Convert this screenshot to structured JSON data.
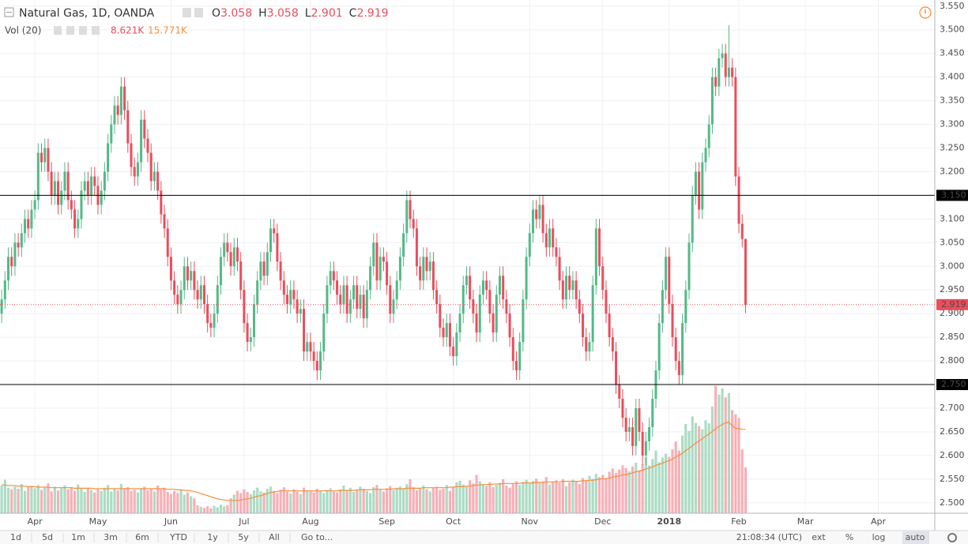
{
  "chart_data": {
    "type": "candlestick",
    "title": "Natural Gas, 1D, OANDA",
    "ohlc_letters": [
      "O",
      "H",
      "L",
      "C"
    ],
    "volume_title": "Vol (20)",
    "volume_label": "8.621K",
    "volume_ma_label": "15.771K",
    "up_color": "#53b987",
    "down_color": "#eb4d5c",
    "volume_up_color": "#acdcc4",
    "volume_down_color": "#f6b0b7",
    "volume_ma_color": "#f5903d",
    "level_color": "#000000",
    "grid": true,
    "ylim": [
      2.478,
      3.563
    ],
    "yticks": [
      {
        "value": 2.5,
        "label": "2.500"
      },
      {
        "value": 2.55,
        "label": "2.550"
      },
      {
        "value": 2.6,
        "label": "2.600"
      },
      {
        "value": 2.65,
        "label": "2.650"
      },
      {
        "value": 2.7,
        "label": "2.700"
      },
      {
        "value": 2.75,
        "label": "2.750"
      },
      {
        "value": 2.8,
        "label": "2.800"
      },
      {
        "value": 2.85,
        "label": "2.850"
      },
      {
        "value": 2.9,
        "label": "2.900"
      },
      {
        "value": 2.95,
        "label": "2.950"
      },
      {
        "value": 3.0,
        "label": "3.000"
      },
      {
        "value": 3.05,
        "label": "3.050"
      },
      {
        "value": 3.1,
        "label": "3.100"
      },
      {
        "value": 3.15,
        "label": "3.150"
      },
      {
        "value": 3.2,
        "label": "3.200"
      },
      {
        "value": 3.25,
        "label": "3.250"
      },
      {
        "value": 3.3,
        "label": "3.300"
      },
      {
        "value": 3.35,
        "label": "3.350"
      },
      {
        "value": 3.4,
        "label": "3.400"
      },
      {
        "value": 3.45,
        "label": "3.450"
      },
      {
        "value": 3.5,
        "label": "3.500"
      },
      {
        "value": 3.55,
        "label": "3.550"
      }
    ],
    "xlim": [
      -0.5,
      281
    ],
    "xticks": [
      {
        "value": 10,
        "label": "Apr"
      },
      {
        "value": 29,
        "label": "May"
      },
      {
        "value": 51,
        "label": "Jun"
      },
      {
        "value": 73,
        "label": "Jul"
      },
      {
        "value": 93,
        "label": "Aug"
      },
      {
        "value": 116,
        "label": "Sep"
      },
      {
        "value": 136,
        "label": "Oct"
      },
      {
        "value": 159,
        "label": "Nov"
      },
      {
        "value": 181,
        "label": "Dec"
      },
      {
        "value": 201,
        "label": "2018"
      },
      {
        "value": 222,
        "label": "Feb"
      },
      {
        "value": 242,
        "label": "Mar"
      },
      {
        "value": 264,
        "label": "Apr"
      }
    ],
    "levels": [
      {
        "value": 3.15,
        "label": "3.150"
      },
      {
        "value": 2.75,
        "label": "2.750"
      }
    ],
    "open": [
      2.9,
      2.93,
      2.97,
      3.02,
      3.0,
      3.05,
      3.04,
      3.07,
      3.1,
      3.08,
      3.12,
      3.14,
      3.24,
      3.22,
      3.25,
      3.2,
      3.15,
      3.18,
      3.13,
      3.16,
      3.2,
      3.14,
      3.12,
      3.08,
      3.1,
      3.16,
      3.18,
      3.15,
      3.19,
      3.17,
      3.13,
      3.16,
      3.2,
      3.26,
      3.3,
      3.34,
      3.32,
      3.38,
      3.33,
      3.26,
      3.21,
      3.19,
      3.22,
      3.31,
      3.27,
      3.24,
      3.18,
      3.2,
      3.16,
      3.11,
      3.08,
      3.02,
      2.97,
      2.94,
      2.92,
      2.95,
      3.0,
      2.97,
      2.99,
      2.95,
      2.93,
      2.96,
      2.92,
      2.88,
      2.87,
      2.9,
      2.96,
      3.02,
      3.05,
      3.03,
      3.0,
      3.04,
      3.01,
      2.95,
      2.88,
      2.84,
      2.85,
      2.92,
      2.97,
      3.01,
      2.98,
      3.03,
      3.08,
      3.07,
      3.01,
      2.97,
      2.94,
      2.92,
      2.95,
      2.93,
      2.9,
      2.91,
      2.82,
      2.84,
      2.82,
      2.8,
      2.78,
      2.82,
      2.9,
      2.96,
      2.99,
      2.97,
      2.94,
      2.92,
      2.96,
      2.9,
      2.93,
      2.96,
      2.91,
      2.94,
      2.89,
      2.95,
      3.0,
      3.05,
      2.97,
      3.02,
      3.01,
      2.96,
      2.9,
      2.93,
      2.97,
      3.02,
      3.07,
      3.14,
      3.1,
      3.08,
      3.0,
      2.97,
      3.02,
      2.99,
      3.01,
      2.95,
      2.92,
      2.87,
      2.85,
      2.88,
      2.83,
      2.81,
      2.86,
      2.9,
      2.96,
      2.98,
      2.93,
      2.9,
      2.86,
      2.94,
      2.97,
      2.95,
      2.9,
      2.86,
      2.94,
      2.98,
      2.93,
      2.9,
      2.85,
      2.8,
      2.78,
      2.84,
      2.93,
      3.02,
      3.07,
      3.12,
      3.1,
      3.13,
      3.07,
      3.04,
      3.08,
      3.04,
      3.02,
      2.97,
      2.93,
      2.98,
      2.95,
      2.97,
      2.93,
      2.9,
      2.85,
      2.82,
      2.84,
      2.96,
      3.08,
      3.0,
      2.95,
      2.9,
      2.85,
      2.82,
      2.75,
      2.72,
      2.68,
      2.65,
      2.66,
      2.62,
      2.7,
      2.65,
      2.6,
      2.63,
      2.66,
      2.72,
      2.78,
      2.88,
      2.95,
      3.02,
      2.92,
      2.85,
      2.8,
      2.77,
      2.88,
      2.95,
      3.05,
      3.15,
      3.2,
      3.12,
      3.22,
      3.25,
      3.3,
      3.4,
      3.38,
      3.44,
      3.45,
      3.4,
      3.42,
      3.4,
      3.19,
      3.09,
      3.058
    ],
    "high": [
      2.95,
      2.99,
      3.04,
      3.04,
      3.07,
      3.07,
      3.09,
      3.12,
      3.12,
      3.14,
      3.16,
      3.26,
      3.26,
      3.27,
      3.27,
      3.22,
      3.2,
      3.2,
      3.18,
      3.22,
      3.22,
      3.16,
      3.14,
      3.12,
      3.18,
      3.2,
      3.2,
      3.21,
      3.21,
      3.19,
      3.18,
      3.22,
      3.28,
      3.32,
      3.36,
      3.36,
      3.4,
      3.4,
      3.35,
      3.28,
      3.23,
      3.24,
      3.33,
      3.33,
      3.29,
      3.26,
      3.22,
      3.22,
      3.18,
      3.13,
      3.1,
      3.04,
      2.99,
      2.96,
      2.97,
      3.02,
      3.02,
      3.01,
      3.01,
      2.97,
      2.98,
      2.98,
      2.94,
      2.9,
      2.92,
      2.98,
      3.04,
      3.07,
      3.07,
      3.05,
      3.06,
      3.06,
      3.03,
      2.97,
      2.9,
      2.87,
      2.94,
      2.99,
      3.03,
      3.03,
      3.05,
      3.1,
      3.1,
      3.09,
      3.03,
      2.99,
      2.96,
      2.97,
      2.97,
      2.95,
      2.93,
      2.93,
      2.86,
      2.86,
      2.84,
      2.82,
      2.84,
      2.92,
      2.98,
      3.01,
      3.01,
      2.99,
      2.96,
      2.98,
      2.98,
      2.95,
      2.98,
      2.98,
      2.96,
      2.96,
      2.97,
      3.02,
      3.07,
      3.07,
      3.04,
      3.04,
      3.03,
      2.98,
      2.95,
      2.99,
      3.04,
      3.09,
      3.16,
      3.16,
      3.12,
      3.1,
      3.02,
      3.04,
      3.04,
      3.03,
      3.03,
      2.97,
      2.94,
      2.89,
      2.9,
      2.9,
      2.85,
      2.88,
      2.92,
      2.98,
      3.0,
      3.0,
      2.95,
      2.92,
      2.96,
      2.99,
      2.99,
      2.97,
      2.92,
      2.96,
      3.0,
      3.0,
      2.95,
      2.92,
      2.87,
      2.82,
      2.86,
      2.95,
      3.04,
      3.09,
      3.14,
      3.14,
      3.15,
      3.15,
      3.09,
      3.1,
      3.1,
      3.06,
      3.04,
      2.99,
      3.0,
      3.0,
      2.99,
      2.99,
      2.95,
      2.92,
      2.87,
      2.86,
      2.98,
      3.1,
      3.1,
      3.02,
      2.97,
      2.92,
      2.87,
      2.84,
      2.77,
      2.74,
      2.7,
      2.68,
      2.68,
      2.72,
      2.72,
      2.67,
      2.65,
      2.68,
      2.74,
      2.8,
      2.9,
      2.97,
      3.04,
      3.04,
      2.94,
      2.87,
      2.82,
      2.9,
      2.97,
      3.07,
      3.17,
      3.22,
      3.22,
      3.24,
      3.27,
      3.32,
      3.42,
      3.42,
      3.46,
      3.47,
      3.47,
      3.51,
      3.44,
      3.42,
      3.21,
      3.11,
      3.058
    ],
    "low": [
      2.88,
      2.91,
      2.95,
      2.98,
      2.98,
      3.02,
      3.02,
      3.05,
      3.06,
      3.06,
      3.1,
      3.12,
      3.2,
      3.2,
      3.18,
      3.13,
      3.13,
      3.11,
      3.11,
      3.14,
      3.12,
      3.1,
      3.06,
      3.06,
      3.08,
      3.14,
      3.13,
      3.13,
      3.15,
      3.11,
      3.11,
      3.14,
      3.18,
      3.24,
      3.28,
      3.3,
      3.3,
      3.31,
      3.24,
      3.19,
      3.17,
      3.17,
      3.2,
      3.25,
      3.22,
      3.16,
      3.16,
      3.14,
      3.09,
      3.06,
      3.0,
      2.95,
      2.92,
      2.9,
      2.9,
      2.93,
      2.95,
      2.95,
      2.93,
      2.91,
      2.91,
      2.9,
      2.86,
      2.85,
      2.85,
      2.88,
      2.94,
      3.0,
      3.01,
      2.98,
      2.98,
      2.99,
      2.93,
      2.86,
      2.82,
      2.82,
      2.83,
      2.9,
      2.95,
      2.96,
      2.96,
      3.01,
      3.05,
      2.99,
      2.95,
      2.92,
      2.9,
      2.9,
      2.91,
      2.88,
      2.88,
      2.8,
      2.8,
      2.8,
      2.78,
      2.76,
      2.76,
      2.8,
      2.88,
      2.94,
      2.95,
      2.92,
      2.9,
      2.9,
      2.88,
      2.88,
      2.91,
      2.89,
      2.89,
      2.87,
      2.87,
      2.93,
      2.98,
      2.95,
      2.95,
      2.99,
      2.94,
      2.88,
      2.88,
      2.91,
      2.95,
      3.0,
      3.05,
      3.08,
      3.06,
      2.98,
      2.95,
      2.95,
      2.97,
      2.97,
      2.93,
      2.9,
      2.85,
      2.83,
      2.83,
      2.81,
      2.79,
      2.79,
      2.84,
      2.88,
      2.94,
      2.91,
      2.88,
      2.84,
      2.84,
      2.92,
      2.93,
      2.88,
      2.84,
      2.84,
      2.92,
      2.91,
      2.88,
      2.83,
      2.78,
      2.76,
      2.76,
      2.82,
      2.91,
      3.0,
      3.05,
      3.08,
      3.08,
      3.05,
      3.02,
      3.02,
      3.02,
      3.0,
      2.95,
      2.91,
      2.91,
      2.93,
      2.93,
      2.91,
      2.88,
      2.83,
      2.8,
      2.8,
      2.82,
      2.94,
      2.98,
      2.93,
      2.88,
      2.83,
      2.8,
      2.73,
      2.7,
      2.66,
      2.63,
      2.63,
      2.6,
      2.6,
      2.63,
      2.58,
      2.58,
      2.61,
      2.64,
      2.7,
      2.76,
      2.86,
      2.93,
      2.9,
      2.83,
      2.78,
      2.75,
      2.75,
      2.86,
      2.93,
      3.03,
      3.13,
      3.1,
      3.1,
      3.2,
      3.23,
      3.28,
      3.36,
      3.36,
      3.42,
      3.38,
      3.38,
      3.38,
      3.17,
      3.07,
      3.04,
      2.901
    ],
    "close": [
      2.93,
      2.97,
      3.02,
      3.0,
      3.05,
      3.04,
      3.07,
      3.1,
      3.08,
      3.12,
      3.14,
      3.24,
      3.22,
      3.25,
      3.2,
      3.15,
      3.18,
      3.13,
      3.16,
      3.2,
      3.14,
      3.12,
      3.08,
      3.1,
      3.16,
      3.18,
      3.15,
      3.19,
      3.17,
      3.13,
      3.16,
      3.2,
      3.26,
      3.3,
      3.34,
      3.32,
      3.38,
      3.33,
      3.26,
      3.21,
      3.19,
      3.22,
      3.31,
      3.27,
      3.24,
      3.18,
      3.2,
      3.16,
      3.11,
      3.08,
      3.02,
      2.97,
      2.94,
      2.92,
      2.95,
      3.0,
      2.97,
      2.99,
      2.95,
      2.93,
      2.96,
      2.92,
      2.88,
      2.87,
      2.9,
      2.96,
      3.02,
      3.05,
      3.03,
      3.0,
      3.04,
      3.01,
      2.95,
      2.88,
      2.84,
      2.85,
      2.92,
      2.97,
      3.01,
      2.98,
      3.03,
      3.08,
      3.07,
      3.01,
      2.97,
      2.94,
      2.92,
      2.95,
      2.93,
      2.9,
      2.91,
      2.82,
      2.84,
      2.82,
      2.8,
      2.78,
      2.82,
      2.9,
      2.96,
      2.99,
      2.97,
      2.94,
      2.92,
      2.96,
      2.9,
      2.93,
      2.96,
      2.91,
      2.94,
      2.89,
      2.95,
      3.0,
      3.05,
      2.97,
      3.02,
      3.01,
      2.96,
      2.9,
      2.93,
      2.97,
      3.02,
      3.07,
      3.14,
      3.1,
      3.08,
      3.0,
      2.97,
      3.02,
      2.99,
      3.01,
      2.95,
      2.92,
      2.87,
      2.85,
      2.88,
      2.83,
      2.81,
      2.86,
      2.9,
      2.96,
      2.98,
      2.93,
      2.9,
      2.86,
      2.94,
      2.97,
      2.95,
      2.9,
      2.86,
      2.94,
      2.98,
      2.93,
      2.9,
      2.85,
      2.8,
      2.78,
      2.84,
      2.93,
      3.02,
      3.07,
      3.12,
      3.1,
      3.13,
      3.07,
      3.04,
      3.08,
      3.04,
      3.02,
      2.97,
      2.93,
      2.98,
      2.95,
      2.97,
      2.93,
      2.9,
      2.85,
      2.82,
      2.84,
      2.96,
      3.08,
      3.0,
      2.95,
      2.9,
      2.85,
      2.82,
      2.75,
      2.72,
      2.68,
      2.65,
      2.66,
      2.62,
      2.7,
      2.65,
      2.6,
      2.63,
      2.66,
      2.72,
      2.78,
      2.88,
      2.95,
      3.02,
      2.92,
      2.85,
      2.8,
      2.77,
      2.88,
      2.95,
      3.05,
      3.15,
      3.2,
      3.12,
      3.22,
      3.25,
      3.3,
      3.4,
      3.38,
      3.44,
      3.45,
      3.4,
      3.42,
      3.4,
      3.19,
      3.09,
      3.058,
      2.919
    ],
    "volume": [
      5.2,
      6.3,
      4.8,
      4.5,
      5.0,
      4.6,
      5.5,
      4.2,
      4.9,
      5.1,
      4.7,
      5.3,
      4.4,
      4.8,
      5.6,
      4.1,
      5.0,
      4.3,
      4.7,
      5.2,
      4.5,
      4.9,
      4.2,
      5.4,
      4.6,
      4.0,
      4.8,
      4.4,
      3.9,
      4.5,
      4.2,
      4.8,
      5.3,
      4.1,
      4.6,
      4.3,
      5.5,
      4.7,
      4.9,
      4.2,
      4.4,
      3.9,
      4.7,
      5.0,
      4.3,
      4.6,
      4.1,
      5.2,
      4.5,
      4.8,
      4.0,
      3.6,
      4.2,
      3.8,
      4.4,
      3.5,
      3.9,
      3.2,
      2.8,
      1.5,
      1.2,
      1.0,
      1.3,
      0.9,
      1.4,
      1.1,
      1.6,
      1.3,
      1.5,
      2.8,
      3.5,
      4.2,
      3.8,
      4.5,
      4.0,
      3.6,
      4.3,
      4.8,
      4.1,
      3.9,
      4.6,
      5.0,
      4.2,
      3.8,
      4.4,
      4.9,
      4.1,
      3.7,
      4.5,
      4.0,
      3.6,
      4.8,
      4.3,
      4.1,
      3.9,
      4.6,
      4.2,
      3.8,
      4.4,
      4.7,
      4.1,
      3.9,
      4.5,
      5.2,
      4.3,
      4.8,
      4.0,
      4.4,
      5.0,
      4.6,
      4.2,
      3.8,
      4.9,
      5.3,
      4.5,
      4.1,
      4.7,
      5.1,
      4.4,
      4.8,
      5.0,
      4.6,
      5.5,
      6.4,
      4.9,
      4.3,
      4.7,
      5.2,
      4.5,
      4.1,
      4.8,
      5.0,
      4.4,
      4.6,
      5.3,
      4.2,
      4.9,
      5.8,
      6.1,
      5.4,
      5.0,
      6.2,
      5.6,
      7.2,
      6.0,
      5.5,
      5.1,
      5.8,
      4.9,
      5.3,
      5.7,
      6.4,
      5.2,
      4.8,
      5.5,
      6.0,
      5.3,
      5.9,
      6.3,
      5.6,
      6.1,
      6.5,
      5.8,
      6.0,
      6.8,
      5.4,
      5.9,
      6.2,
      5.7,
      6.4,
      5.1,
      5.8,
      6.3,
      6.0,
      5.5,
      6.6,
      6.2,
      7.0,
      6.5,
      7.4,
      6.8,
      7.2,
      6.5,
      7.8,
      8.4,
      7.6,
      8.2,
      9.0,
      8.5,
      7.9,
      8.8,
      9.5,
      8.1,
      9.2,
      10.5,
      9.0,
      10.2,
      11.8,
      9.6,
      10.5,
      11.2,
      10.6,
      12.0,
      13.5,
      11.8,
      14.6,
      16.8,
      15.5,
      18.2,
      17.0,
      16.4,
      15.8,
      17.5,
      16.9,
      20.1,
      24.0,
      22.3,
      23.5,
      21.8,
      22.6,
      19.4,
      18.6,
      17.9,
      12.0,
      8.621
    ],
    "volume_ma": [
      5.3,
      5.3,
      5.2,
      5.2,
      5.2,
      5.1,
      5.1,
      5.1,
      5.0,
      5.0,
      5.0,
      4.9,
      4.9,
      4.9,
      4.9,
      4.8,
      4.8,
      4.8,
      4.8,
      4.8,
      4.8,
      4.8,
      4.7,
      4.7,
      4.7,
      4.7,
      4.7,
      4.7,
      4.6,
      4.6,
      4.6,
      4.6,
      4.6,
      4.6,
      4.6,
      4.6,
      4.6,
      4.6,
      4.6,
      4.6,
      4.6,
      4.6,
      4.6,
      4.6,
      4.6,
      4.6,
      4.6,
      4.6,
      4.6,
      4.6,
      4.5,
      4.5,
      4.5,
      4.4,
      4.4,
      4.3,
      4.3,
      4.2,
      4.1,
      3.9,
      3.7,
      3.5,
      3.3,
      3.1,
      2.9,
      2.7,
      2.6,
      2.5,
      2.4,
      2.4,
      2.4,
      2.4,
      2.5,
      2.6,
      2.7,
      2.8,
      3.0,
      3.2,
      3.3,
      3.5,
      3.7,
      3.9,
      4.0,
      4.1,
      4.2,
      4.2,
      4.2,
      4.2,
      4.2,
      4.2,
      4.2,
      4.2,
      4.2,
      4.2,
      4.2,
      4.2,
      4.2,
      4.2,
      4.2,
      4.2,
      4.2,
      4.2,
      4.3,
      4.3,
      4.3,
      4.3,
      4.3,
      4.4,
      4.4,
      4.4,
      4.4,
      4.4,
      4.5,
      4.5,
      4.5,
      4.5,
      4.5,
      4.5,
      4.6,
      4.6,
      4.6,
      4.6,
      4.7,
      4.7,
      4.7,
      4.7,
      4.7,
      4.8,
      4.8,
      4.8,
      4.8,
      4.8,
      4.8,
      4.8,
      4.8,
      4.9,
      4.9,
      5.0,
      5.0,
      5.0,
      5.1,
      5.1,
      5.2,
      5.3,
      5.3,
      5.4,
      5.4,
      5.4,
      5.5,
      5.5,
      5.5,
      5.6,
      5.6,
      5.6,
      5.6,
      5.6,
      5.6,
      5.7,
      5.7,
      5.7,
      5.7,
      5.8,
      5.8,
      5.8,
      5.9,
      5.9,
      5.9,
      5.9,
      5.9,
      6.0,
      6.0,
      6.0,
      6.0,
      6.0,
      6.0,
      6.1,
      6.1,
      6.2,
      6.2,
      6.3,
      6.4,
      6.5,
      6.5,
      6.6,
      6.8,
      6.9,
      7.0,
      7.2,
      7.3,
      7.4,
      7.6,
      7.8,
      7.9,
      8.1,
      8.3,
      8.5,
      8.7,
      9.0,
      9.2,
      9.4,
      9.7,
      9.9,
      10.2,
      10.6,
      10.9,
      11.3,
      11.8,
      12.2,
      12.7,
      13.2,
      13.6,
      14.0,
      14.5,
      14.9,
      15.4,
      15.9,
      16.3,
      16.7,
      17.0,
      17.1,
      16.5,
      16.0,
      15.9,
      15.8,
      15.771
    ]
  },
  "toolbar": {
    "ranges": [
      "1d",
      "5d",
      "1m",
      "3m",
      "6m",
      "YTD",
      "1y",
      "5y",
      "All"
    ],
    "goto": "Go to...",
    "time": "21:08:34 (UTC)",
    "options": [
      "ext",
      "%",
      "log",
      "auto"
    ]
  }
}
